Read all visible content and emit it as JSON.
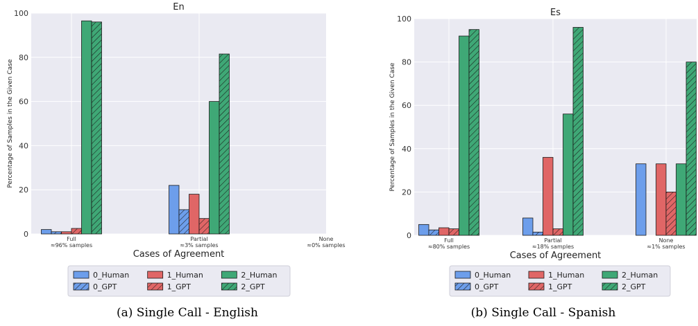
{
  "chart_data": [
    {
      "type": "bar",
      "title": "En",
      "xlabel": "Cases of Agreement",
      "ylabel": "Percentage of Samples in the Given Case",
      "ylim": [
        0,
        100
      ],
      "yticks": [
        0,
        20,
        40,
        60,
        80,
        100
      ],
      "categories": [
        "Full",
        "Partial",
        "None"
      ],
      "category_sublabels": [
        "≈96% samples",
        "≈3% samples",
        "≈0% samples"
      ],
      "series": [
        {
          "name": "0_Human",
          "color": "#6d9eeb",
          "hatch": false,
          "values": [
            2,
            22,
            0
          ]
        },
        {
          "name": "0_GPT",
          "color": "#6d9eeb",
          "hatch": true,
          "values": [
            1,
            11,
            0
          ]
        },
        {
          "name": "1_Human",
          "color": "#e06666",
          "hatch": false,
          "values": [
            1,
            18,
            0
          ]
        },
        {
          "name": "1_GPT",
          "color": "#e06666",
          "hatch": true,
          "values": [
            2.5,
            7,
            0
          ]
        },
        {
          "name": "2_Human",
          "color": "#3fa876",
          "hatch": false,
          "values": [
            96.5,
            60,
            0
          ]
        },
        {
          "name": "2_GPT",
          "color": "#3fa876",
          "hatch": true,
          "values": [
            96,
            81.5,
            0
          ]
        }
      ],
      "grid": true,
      "legend_position": "below",
      "caption": "(a) Single Call - English"
    },
    {
      "type": "bar",
      "title": "Es",
      "xlabel": "Cases of Agreement",
      "ylabel": "Percentage of Samples in the Given Case",
      "ylim": [
        0,
        100
      ],
      "yticks": [
        0,
        20,
        40,
        60,
        80,
        100
      ],
      "categories": [
        "Full",
        "Partial",
        "None"
      ],
      "category_sublabels": [
        "≈80% samples",
        "≈18% samples",
        "≈1% samples"
      ],
      "series": [
        {
          "name": "0_Human",
          "color": "#6d9eeb",
          "hatch": false,
          "values": [
            5,
            8,
            33
          ]
        },
        {
          "name": "0_GPT",
          "color": "#6d9eeb",
          "hatch": true,
          "values": [
            2.5,
            1.5,
            0
          ]
        },
        {
          "name": "1_Human",
          "color": "#e06666",
          "hatch": false,
          "values": [
            3.5,
            36,
            33
          ]
        },
        {
          "name": "1_GPT",
          "color": "#e06666",
          "hatch": true,
          "values": [
            3,
            3,
            20
          ]
        },
        {
          "name": "2_Human",
          "color": "#3fa876",
          "hatch": false,
          "values": [
            92,
            56,
            33
          ]
        },
        {
          "name": "2_GPT",
          "color": "#3fa876",
          "hatch": true,
          "values": [
            95,
            96,
            80
          ]
        }
      ],
      "grid": true,
      "legend_position": "below",
      "caption": "(b) Single Call - Spanish"
    }
  ]
}
